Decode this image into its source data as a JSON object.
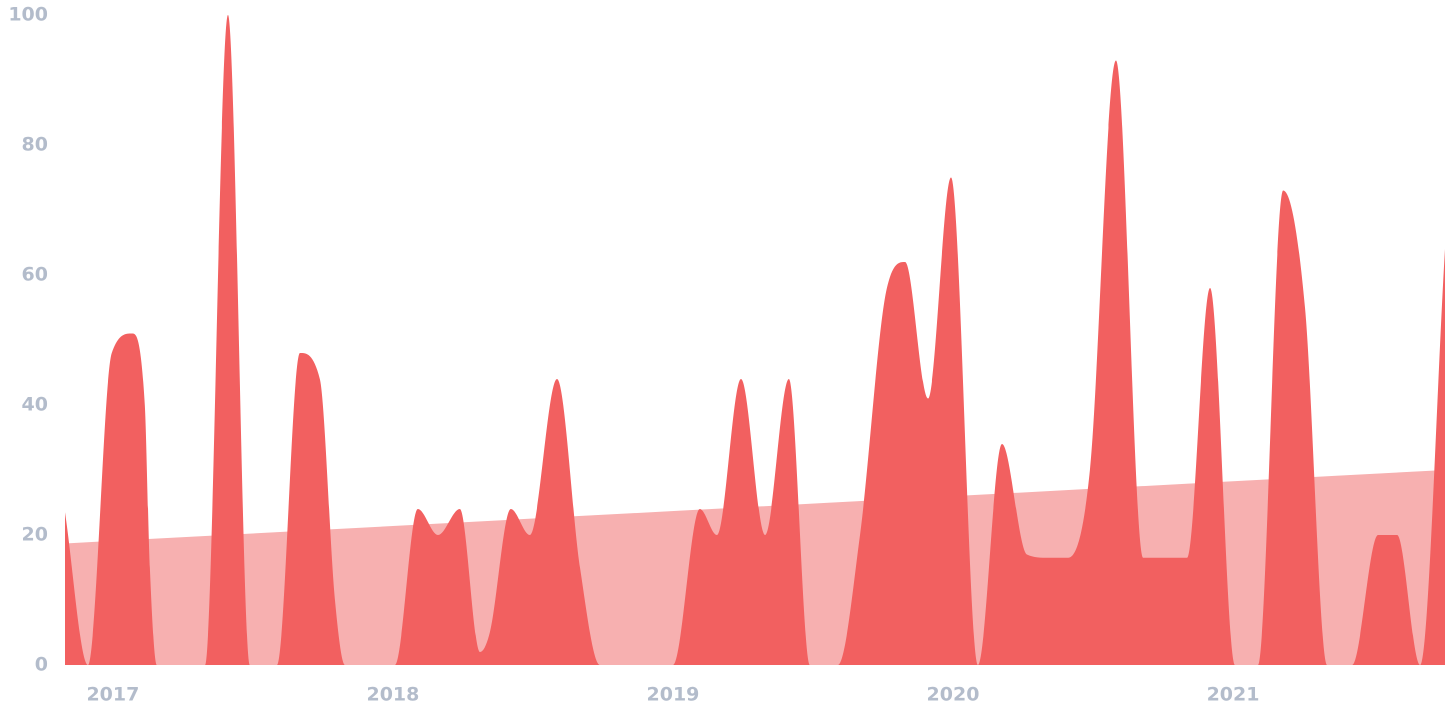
{
  "chart_data": {
    "type": "area",
    "x": [
      2016.829,
      2016.911,
      2016.996,
      2017.068,
      2017.114,
      2017.132,
      2017.157,
      2017.329,
      2017.411,
      2017.489,
      2017.586,
      2017.668,
      2017.739,
      2017.793,
      2017.829,
      2018.007,
      2018.089,
      2018.161,
      2018.239,
      2018.311,
      2018.346,
      2018.421,
      2018.489,
      2018.586,
      2018.668,
      2018.739,
      2019.0,
      2019.096,
      2019.157,
      2019.243,
      2019.329,
      2019.414,
      2019.489,
      2019.589,
      2019.668,
      2019.764,
      2019.829,
      2019.911,
      2019.993,
      2020.089,
      2020.175,
      2020.264,
      2020.339,
      2020.411,
      2020.489,
      2020.582,
      2020.679,
      2020.757,
      2020.836,
      2020.918,
      2021.007,
      2021.089,
      2021.179,
      2021.257,
      2021.336,
      2021.425,
      2021.518,
      2021.586,
      2021.668,
      2021.757
    ],
    "series": [
      {
        "color": "#f26060",
        "values": [
          23.5,
          0,
          48,
          51,
          40,
          15,
          0,
          0,
          100,
          0,
          0,
          48,
          44,
          10,
          0,
          0,
          24,
          20,
          24,
          2,
          5,
          24,
          20,
          44,
          15,
          0,
          0,
          24,
          20,
          44,
          20,
          44,
          0,
          0,
          20,
          58,
          62,
          41,
          75,
          0,
          34,
          17,
          16.5,
          16.5,
          30,
          93,
          16.5,
          16.5,
          16.5,
          58,
          0,
          0,
          73,
          55,
          0,
          0,
          20,
          20,
          0,
          64
        ]
      },
      {
        "color": "#f7b0b0",
        "x": [
          2016.829,
          2021.757
        ],
        "values": [
          18.7,
          30
        ]
      }
    ],
    "xlim": [
      2016.829,
      2021.757
    ],
    "xticks": [
      2017,
      2018,
      2019,
      2020,
      2021
    ],
    "ylim": [
      0,
      100
    ],
    "yticks": [
      0,
      20,
      40,
      60,
      80,
      100
    ]
  }
}
